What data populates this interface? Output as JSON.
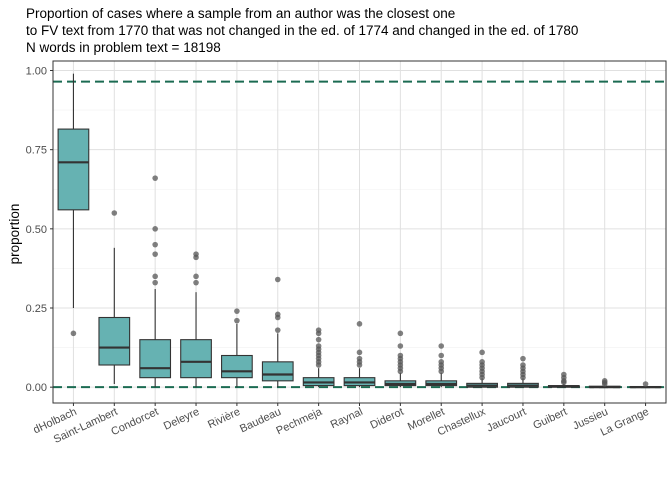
{
  "chart_data": {
    "type": "boxplot",
    "title_lines": [
      "Proportion of cases where a sample from an author was the closest one",
      "to FV text from 1770 that was not changed in the ed. of 1774 and changed in the ed. of 1780",
      "N words in problem text = 18198"
    ],
    "xlabel": "",
    "ylabel": "proportion",
    "ylim": [
      -0.05,
      1.03
    ],
    "yticks": [
      0.0,
      0.25,
      0.5,
      0.75,
      1.0
    ],
    "ytick_labels": [
      "0.00",
      "0.25",
      "0.50",
      "0.75",
      "1.00"
    ],
    "grid": true,
    "reference_lines": [
      0.0,
      0.965
    ],
    "colors": {
      "box_fill": "#66b2b2",
      "box_stroke": "#333333",
      "outlier": "#555555",
      "reference_line": "#1b6b52",
      "grid": "#e0e0e0",
      "panel_border": "#333333"
    },
    "categories": [
      "dHolbach",
      "Saint-Lambert",
      "Condorcet",
      "Deleyre",
      "Rivière",
      "Baudeau",
      "Pechmeja",
      "Raynal",
      "Diderot",
      "Morellet",
      "Chastellux",
      "Jaucourt",
      "Guibert",
      "Jussieu",
      "La Grange"
    ],
    "boxes": [
      {
        "whisker_low": 0.25,
        "q1": 0.56,
        "median": 0.71,
        "q3": 0.815,
        "whisker_high": 0.99,
        "outliers": [
          0.17
        ]
      },
      {
        "whisker_low": 0.01,
        "q1": 0.07,
        "median": 0.125,
        "q3": 0.22,
        "whisker_high": 0.44,
        "outliers": [
          0.55
        ]
      },
      {
        "whisker_low": 0.0,
        "q1": 0.03,
        "median": 0.06,
        "q3": 0.15,
        "whisker_high": 0.31,
        "outliers": [
          0.33,
          0.35,
          0.42,
          0.45,
          0.5,
          0.66
        ]
      },
      {
        "whisker_low": 0.0,
        "q1": 0.03,
        "median": 0.08,
        "q3": 0.15,
        "whisker_high": 0.3,
        "outliers": [
          0.33,
          0.35,
          0.41,
          0.42
        ]
      },
      {
        "whisker_low": 0.0,
        "q1": 0.03,
        "median": 0.05,
        "q3": 0.1,
        "whisker_high": 0.2,
        "outliers": [
          0.21,
          0.24
        ]
      },
      {
        "whisker_low": 0.0,
        "q1": 0.02,
        "median": 0.04,
        "q3": 0.08,
        "whisker_high": 0.17,
        "outliers": [
          0.18,
          0.22,
          0.23,
          0.34
        ]
      },
      {
        "whisker_low": 0.0,
        "q1": 0.005,
        "median": 0.015,
        "q3": 0.03,
        "whisker_high": 0.06,
        "outliers": [
          0.07,
          0.08,
          0.09,
          0.1,
          0.11,
          0.12,
          0.13,
          0.15,
          0.17,
          0.18
        ]
      },
      {
        "whisker_low": 0.0,
        "q1": 0.005,
        "median": 0.015,
        "q3": 0.03,
        "whisker_high": 0.06,
        "outliers": [
          0.07,
          0.08,
          0.09,
          0.11,
          0.2
        ]
      },
      {
        "whisker_low": 0.0,
        "q1": 0.005,
        "median": 0.01,
        "q3": 0.02,
        "whisker_high": 0.045,
        "outliers": [
          0.05,
          0.06,
          0.07,
          0.08,
          0.09,
          0.1,
          0.13,
          0.17
        ]
      },
      {
        "whisker_low": 0.0,
        "q1": 0.005,
        "median": 0.01,
        "q3": 0.02,
        "whisker_high": 0.045,
        "outliers": [
          0.05,
          0.06,
          0.07,
          0.08,
          0.1,
          0.13
        ]
      },
      {
        "whisker_low": 0.0,
        "q1": 0.0,
        "median": 0.005,
        "q3": 0.012,
        "whisker_high": 0.028,
        "outliers": [
          0.03,
          0.04,
          0.05,
          0.06,
          0.07,
          0.08,
          0.11
        ]
      },
      {
        "whisker_low": 0.0,
        "q1": 0.0,
        "median": 0.005,
        "q3": 0.012,
        "whisker_high": 0.028,
        "outliers": [
          0.03,
          0.04,
          0.05,
          0.06,
          0.07,
          0.09
        ]
      },
      {
        "whisker_low": 0.0,
        "q1": 0.0,
        "median": 0.002,
        "q3": 0.005,
        "whisker_high": 0.01,
        "outliers": [
          0.015,
          0.02,
          0.03,
          0.04
        ]
      },
      {
        "whisker_low": 0.0,
        "q1": 0.0,
        "median": 0.0,
        "q3": 0.003,
        "whisker_high": 0.005,
        "outliers": [
          0.01,
          0.015,
          0.02
        ]
      },
      {
        "whisker_low": 0.0,
        "q1": 0.0,
        "median": 0.0,
        "q3": 0.002,
        "whisker_high": 0.003,
        "outliers": [
          0.01
        ]
      }
    ]
  }
}
